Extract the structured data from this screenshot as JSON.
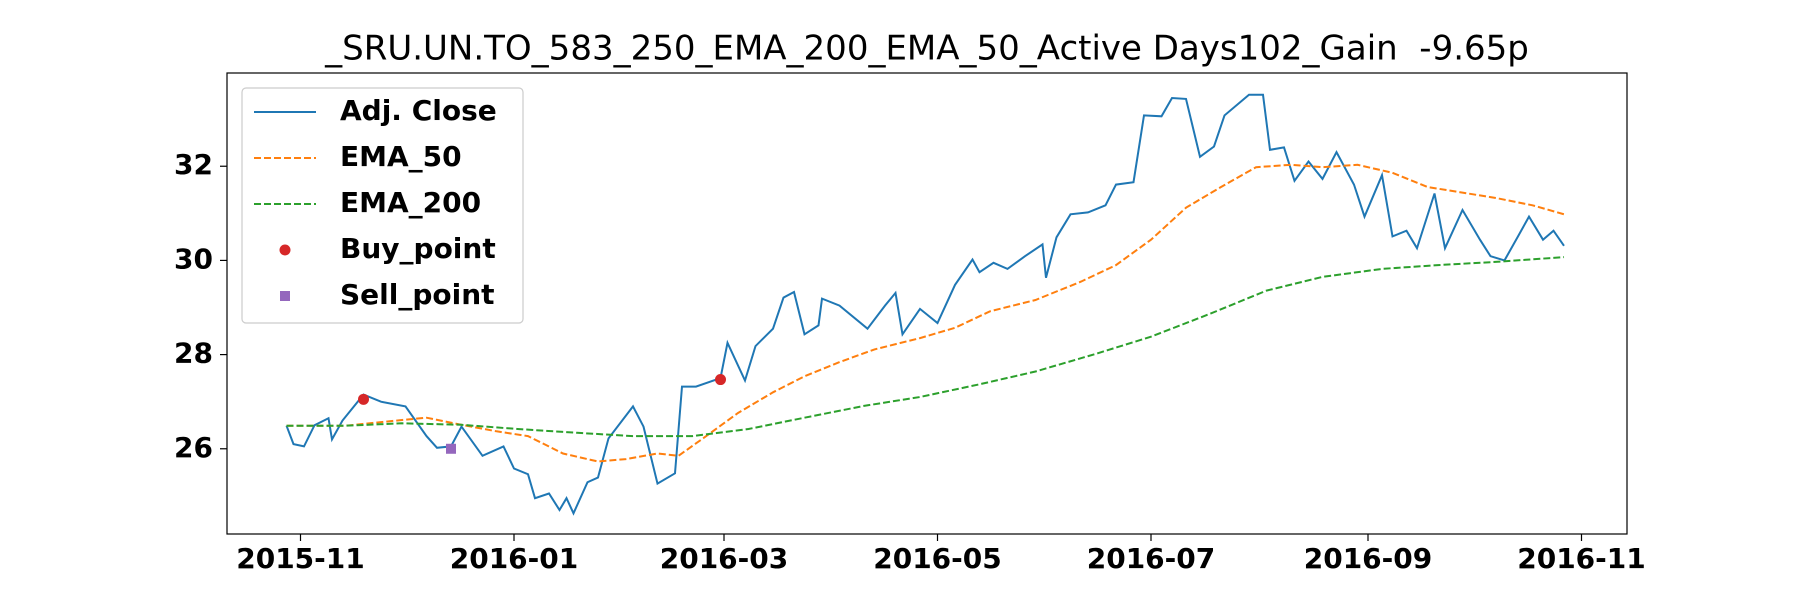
{
  "chart_data": {
    "type": "line",
    "title": "_SRU.UN.TO_583_250_EMA_200_EMA_50_Active Days102_Gain  -9.65p",
    "xlim": [
      "2015-10-11",
      "2016-11-14"
    ],
    "xticks": [
      {
        "value": "2015-11-01",
        "label": "2015-11"
      },
      {
        "value": "2016-01-01",
        "label": "2016-01"
      },
      {
        "value": "2016-03-01",
        "label": "2016-03"
      },
      {
        "value": "2016-05-01",
        "label": "2016-05"
      },
      {
        "value": "2016-07-01",
        "label": "2016-07"
      },
      {
        "value": "2016-09-01",
        "label": "2016-09"
      },
      {
        "value": "2016-11-01",
        "label": "2016-11"
      }
    ],
    "ylim": [
      24.19,
      33.98
    ],
    "yticks": [
      26,
      28,
      30,
      32
    ],
    "grid": false,
    "legend": "upper left",
    "series": [
      {
        "name": "Adj. Close",
        "color": "#1f77b4",
        "style": "solid",
        "x": [
          "2015-10-28",
          "2015-10-30",
          "2015-11-02",
          "2015-11-05",
          "2015-11-09",
          "2015-11-10",
          "2015-11-13",
          "2015-11-19",
          "2015-11-24",
          "2015-12-01",
          "2015-12-07",
          "2015-12-10",
          "2015-12-14",
          "2015-12-17",
          "2015-12-23",
          "2015-12-29",
          "2016-01-01",
          "2016-01-05",
          "2016-01-07",
          "2016-01-11",
          "2016-01-14",
          "2016-01-16",
          "2016-01-18",
          "2016-01-22",
          "2016-01-25",
          "2016-01-28",
          "2016-02-04",
          "2016-02-07",
          "2016-02-11",
          "2016-02-16",
          "2016-02-18",
          "2016-02-22",
          "2016-02-29",
          "2016-03-02",
          "2016-03-07",
          "2016-03-10",
          "2016-03-15",
          "2016-03-18",
          "2016-03-21",
          "2016-03-24",
          "2016-03-28",
          "2016-03-29",
          "2016-04-03",
          "2016-04-11",
          "2016-04-16",
          "2016-04-19",
          "2016-04-21",
          "2016-04-26",
          "2016-05-01",
          "2016-05-06",
          "2016-05-11",
          "2016-05-13",
          "2016-05-17",
          "2016-05-21",
          "2016-05-26",
          "2016-05-31",
          "2016-06-01",
          "2016-06-04",
          "2016-06-08",
          "2016-06-13",
          "2016-06-18",
          "2016-06-21",
          "2016-06-26",
          "2016-06-29",
          "2016-07-04",
          "2016-07-07",
          "2016-07-11",
          "2016-07-15",
          "2016-07-19",
          "2016-07-22",
          "2016-07-29",
          "2016-08-02",
          "2016-08-04",
          "2016-08-08",
          "2016-08-11",
          "2016-08-15",
          "2016-08-19",
          "2016-08-23",
          "2016-08-28",
          "2016-08-31",
          "2016-09-05",
          "2016-09-08",
          "2016-09-12",
          "2016-09-15",
          "2016-09-20",
          "2016-09-23",
          "2016-09-28",
          "2016-10-03",
          "2016-10-06",
          "2016-10-10",
          "2016-10-14",
          "2016-10-17",
          "2016-10-21",
          "2016-10-24",
          "2016-10-27"
        ],
        "values": [
          26.49,
          26.1,
          26.05,
          26.5,
          26.65,
          26.2,
          26.6,
          27.15,
          27.0,
          26.9,
          26.27,
          26.02,
          26.05,
          26.47,
          25.85,
          26.05,
          25.58,
          25.46,
          24.95,
          25.05,
          24.7,
          24.95,
          24.63,
          25.29,
          25.39,
          26.22,
          26.9,
          26.47,
          25.26,
          25.48,
          27.32,
          27.32,
          27.5,
          28.25,
          27.45,
          28.18,
          28.55,
          29.21,
          29.33,
          28.43,
          28.62,
          29.19,
          29.04,
          28.55,
          29.04,
          29.31,
          28.43,
          28.97,
          28.67,
          29.48,
          30.02,
          29.75,
          29.95,
          29.82,
          30.09,
          30.34,
          29.63,
          30.49,
          30.98,
          31.02,
          31.17,
          31.61,
          31.66,
          33.08,
          33.06,
          33.45,
          33.43,
          32.2,
          32.42,
          33.08,
          33.52,
          33.52,
          32.35,
          32.4,
          31.69,
          32.1,
          31.73,
          32.3,
          31.61,
          30.93,
          31.81,
          30.51,
          30.63,
          30.26,
          31.42,
          30.26,
          31.07,
          30.44,
          30.09,
          30.0,
          30.53,
          30.93,
          30.44,
          30.63,
          30.31
        ]
      },
      {
        "name": "EMA_50",
        "color": "#ff7f0e",
        "style": "dashed",
        "x": [
          "2015-10-28",
          "2015-11-14",
          "2015-11-30",
          "2015-12-07",
          "2015-12-17",
          "2015-12-27",
          "2016-01-05",
          "2016-01-15",
          "2016-01-25",
          "2016-02-02",
          "2016-02-11",
          "2016-02-17",
          "2016-02-24",
          "2016-03-05",
          "2016-03-15",
          "2016-03-24",
          "2016-04-03",
          "2016-04-13",
          "2016-04-26",
          "2016-05-06",
          "2016-05-16",
          "2016-05-29",
          "2016-06-11",
          "2016-06-21",
          "2016-07-01",
          "2016-07-11",
          "2016-07-21",
          "2016-07-31",
          "2016-08-10",
          "2016-08-19",
          "2016-08-29",
          "2016-09-08",
          "2016-09-18",
          "2016-09-28",
          "2016-10-08",
          "2016-10-18",
          "2016-10-27"
        ],
        "values": [
          26.49,
          26.49,
          26.61,
          26.66,
          26.51,
          26.37,
          26.27,
          25.9,
          25.73,
          25.78,
          25.9,
          25.85,
          26.22,
          26.76,
          27.2,
          27.54,
          27.84,
          28.11,
          28.35,
          28.57,
          28.92,
          29.16,
          29.55,
          29.9,
          30.44,
          31.12,
          31.56,
          31.98,
          32.03,
          31.98,
          32.03,
          31.86,
          31.56,
          31.44,
          31.32,
          31.17,
          30.98
        ]
      },
      {
        "name": "EMA_200",
        "color": "#2ca02c",
        "style": "dashed",
        "x": [
          "2015-10-28",
          "2015-11-14",
          "2015-11-30",
          "2015-12-17",
          "2016-01-02",
          "2016-01-19",
          "2016-02-04",
          "2016-02-21",
          "2016-03-08",
          "2016-03-24",
          "2016-04-10",
          "2016-04-26",
          "2016-05-13",
          "2016-05-29",
          "2016-06-15",
          "2016-07-01",
          "2016-07-18",
          "2016-08-03",
          "2016-08-19",
          "2016-09-05",
          "2016-09-21",
          "2016-10-08",
          "2016-10-27"
        ],
        "values": [
          26.49,
          26.49,
          26.54,
          26.51,
          26.42,
          26.34,
          26.27,
          26.27,
          26.42,
          26.66,
          26.91,
          27.1,
          27.37,
          27.64,
          28.01,
          28.38,
          28.87,
          29.36,
          29.65,
          29.82,
          29.9,
          29.97,
          30.07
        ]
      },
      {
        "name": "Buy_point",
        "color": "#d62728",
        "style": "marker",
        "marker": "circle",
        "x": [
          "2015-11-19",
          "2016-02-29"
        ],
        "values": [
          27.05,
          27.47
        ]
      },
      {
        "name": "Sell_point",
        "color": "#9467bd",
        "style": "marker",
        "marker": "square",
        "x": [
          "2015-12-14"
        ],
        "values": [
          26.0
        ]
      }
    ]
  }
}
